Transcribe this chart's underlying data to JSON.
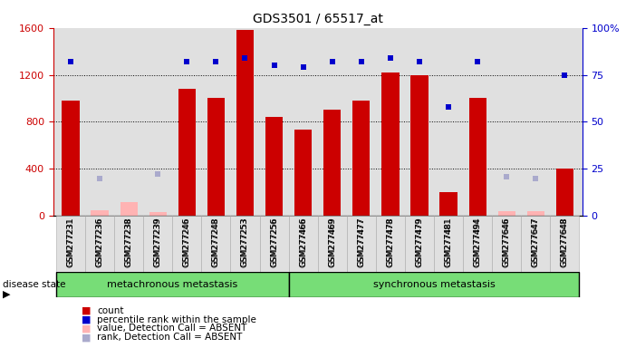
{
  "title": "GDS3501 / 65517_at",
  "samples": [
    "GSM277231",
    "GSM277236",
    "GSM277238",
    "GSM277239",
    "GSM277246",
    "GSM277248",
    "GSM277253",
    "GSM277256",
    "GSM277466",
    "GSM277469",
    "GSM277477",
    "GSM277478",
    "GSM277479",
    "GSM277481",
    "GSM277494",
    "GSM277646",
    "GSM277647",
    "GSM277648"
  ],
  "counts": [
    980,
    50,
    120,
    30,
    1080,
    1000,
    1580,
    840,
    730,
    900,
    980,
    1220,
    1200,
    200,
    1000,
    40,
    40,
    400
  ],
  "absent_value": [
    null,
    null,
    120,
    null,
    null,
    null,
    null,
    null,
    null,
    null,
    null,
    null,
    null,
    null,
    null,
    null,
    null,
    null
  ],
  "percentile_rank": [
    82,
    null,
    null,
    null,
    82,
    82,
    84,
    80,
    79,
    82,
    82,
    84,
    82,
    58,
    82,
    null,
    null,
    75
  ],
  "absent_rank": [
    null,
    20,
    null,
    22,
    null,
    null,
    null,
    null,
    null,
    null,
    null,
    null,
    null,
    null,
    null,
    21,
    20,
    null
  ],
  "is_absent_bar": [
    false,
    true,
    true,
    true,
    false,
    false,
    false,
    false,
    false,
    false,
    false,
    false,
    false,
    false,
    false,
    true,
    true,
    false
  ],
  "metachronous_count": 8,
  "synchronous_count": 10,
  "bar_color_present": "#cc0000",
  "bar_color_absent": "#ffb3b3",
  "dot_color_present": "#0000cc",
  "dot_color_absent": "#aaaacc",
  "ylim_left": [
    0,
    1600
  ],
  "ylim_right": [
    0,
    100
  ],
  "yticks_left": [
    0,
    400,
    800,
    1200,
    1600
  ],
  "yticks_right": [
    0,
    25,
    50,
    75,
    100
  ],
  "ytick_labels_right": [
    "0",
    "25",
    "50",
    "75",
    "100%"
  ],
  "bg_color": "#e0e0e0",
  "green_color": "#77dd77",
  "legend_items": [
    "count",
    "percentile rank within the sample",
    "value, Detection Call = ABSENT",
    "rank, Detection Call = ABSENT"
  ],
  "legend_colors": [
    "#cc0000",
    "#0000cc",
    "#ffb3b3",
    "#aaaacc"
  ]
}
